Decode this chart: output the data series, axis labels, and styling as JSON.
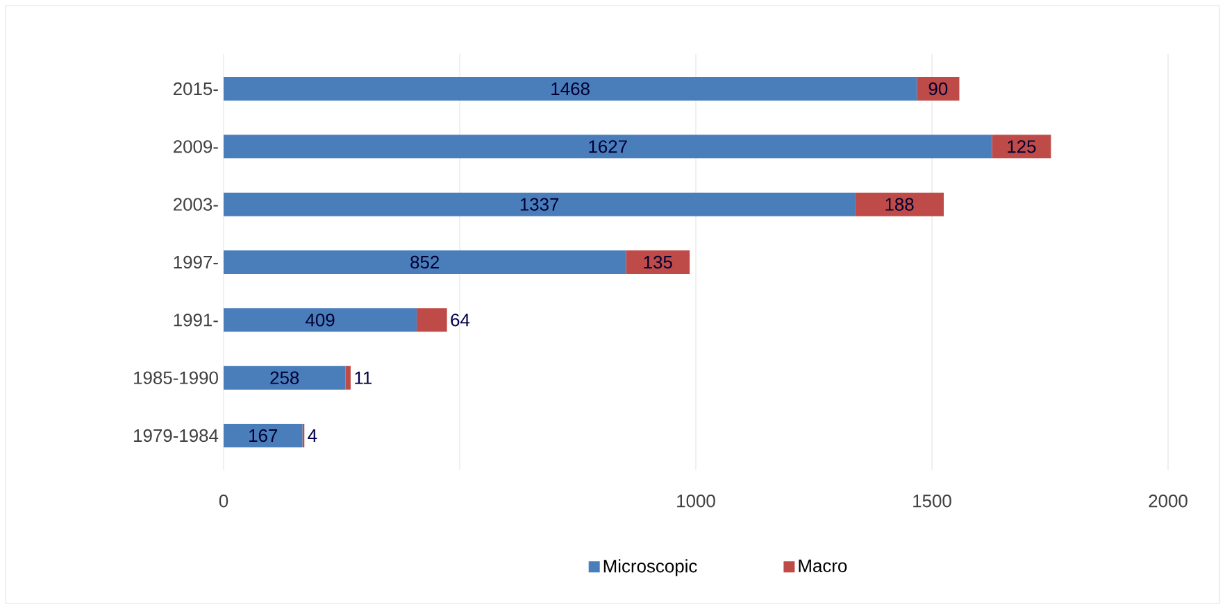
{
  "chart_data": {
    "type": "bar",
    "orientation": "horizontal",
    "stacked": true,
    "categories": [
      "2015-",
      "2009-",
      "2003-",
      "1997-",
      "1991-",
      "1985-1990",
      "1979-1984"
    ],
    "series": [
      {
        "name": "Microscopic",
        "color": "#4a7ebb",
        "values": [
          1468,
          1627,
          1337,
          852,
          409,
          258,
          167
        ]
      },
      {
        "name": "Macro",
        "color": "#be4b48",
        "values": [
          90,
          125,
          188,
          135,
          64,
          11,
          4
        ]
      }
    ],
    "xlim": [
      0,
      2100
    ],
    "xticks": [
      0,
      {
        "value": 500,
        "label": null
      },
      1000,
      1500,
      2000
    ],
    "grid": "x",
    "legend": "bottom",
    "data_labels": true
  }
}
